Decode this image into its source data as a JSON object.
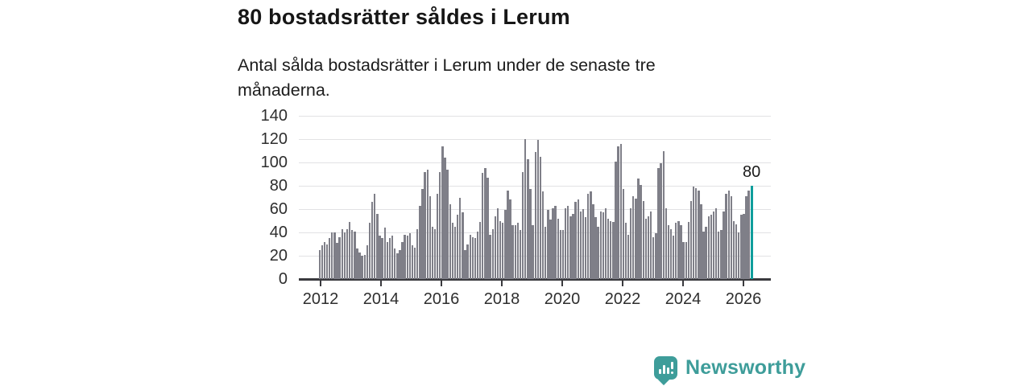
{
  "header": {
    "title": "80 bostadsrätter såldes i Lerum",
    "subtitle": "Antal sålda bostadsrätter i Lerum under de senaste tre månaderna.",
    "subtitle_lines": {
      "line1": "Antal sålda bostadsrätter i Lerum under de senaste tre",
      "line2": "månaderna."
    }
  },
  "chart_data": {
    "type": "bar",
    "title": "80 bostadsrätter såldes i Lerum",
    "xlabel": "",
    "ylabel": "",
    "ylim": [
      0,
      140
    ],
    "y_ticks": [
      0,
      20,
      40,
      60,
      80,
      100,
      120,
      140
    ],
    "x_tick_labels": [
      "2012",
      "2014",
      "2016",
      "2018",
      "2020",
      "2022",
      "2024",
      "2026"
    ],
    "grid": true,
    "x_start": "2012-01",
    "frequency": "monthly (rolling 3-month sales count)",
    "values": [
      25,
      29,
      32,
      30,
      35,
      40,
      40,
      31,
      36,
      43,
      40,
      43,
      49,
      42,
      41,
      26,
      23,
      20,
      21,
      29,
      48,
      66,
      73,
      56,
      37,
      35,
      44,
      32,
      35,
      37,
      26,
      22,
      25,
      32,
      38,
      37,
      39,
      29,
      27,
      43,
      63,
      77,
      92,
      94,
      71,
      45,
      43,
      73,
      92,
      114,
      104,
      94,
      64,
      48,
      45,
      55,
      70,
      57,
      25,
      30,
      38,
      36,
      35,
      41,
      49,
      91,
      95,
      87,
      38,
      43,
      54,
      61,
      50,
      48,
      59,
      76,
      68,
      46,
      46,
      48,
      42,
      92,
      120,
      103,
      77,
      46,
      109,
      119,
      105,
      75,
      45,
      59,
      51,
      61,
      63,
      52,
      42,
      42,
      61,
      63,
      54,
      56,
      66,
      68,
      58,
      60,
      53,
      73,
      75,
      64,
      53,
      45,
      58,
      57,
      61,
      52,
      50,
      49,
      101,
      114,
      116,
      77,
      48,
      38,
      61,
      71,
      69,
      86,
      81,
      67,
      52,
      54,
      58,
      36,
      39,
      95,
      99,
      110,
      61,
      46,
      43,
      37,
      48,
      50,
      46,
      32,
      32,
      49,
      67,
      79,
      78,
      76,
      64,
      41,
      45,
      54,
      55,
      58,
      61,
      41,
      42,
      58,
      73,
      76,
      71,
      50,
      47,
      40,
      55,
      56,
      71,
      76,
      80
    ],
    "bar_color": "#7f7f88",
    "highlight": {
      "position": "last",
      "value": 80,
      "label": "80",
      "color": "#0f9e9c"
    },
    "legend": null
  },
  "footer": {
    "brand": "Newsworthy",
    "brand_color": "#3e9d9a",
    "logo_icon": "bar-chart-speech-bubble-icon"
  }
}
